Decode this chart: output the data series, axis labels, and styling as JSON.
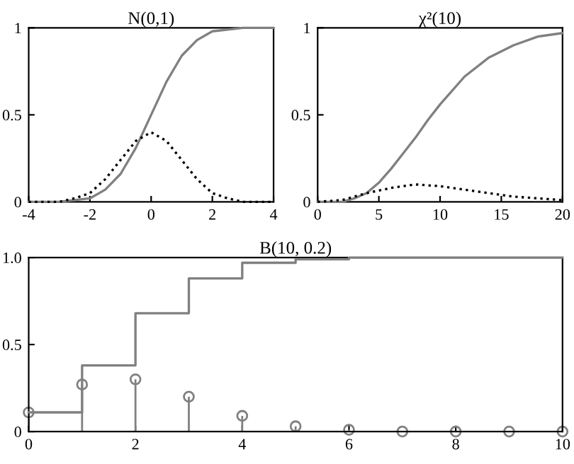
{
  "chart_data": [
    {
      "type": "line",
      "title": "N(0,1)",
      "xlim": [
        -4,
        4
      ],
      "xticks": [
        -4,
        -2,
        0,
        2,
        4
      ],
      "ylim": [
        0,
        1
      ],
      "yticks": [
        0,
        0.5,
        1
      ],
      "grid": false,
      "series": [
        {
          "color": "#808080",
          "line_style": "solid",
          "x": [
            -4,
            -3.5,
            -3,
            -2.5,
            -2,
            -1.5,
            -1,
            -0.5,
            0,
            0.5,
            1,
            1.5,
            2,
            2.5,
            3,
            3.5,
            4
          ],
          "values": [
            0,
            0,
            0,
            0.01,
            0.02,
            0.07,
            0.16,
            0.31,
            0.5,
            0.69,
            0.84,
            0.93,
            0.98,
            0.99,
            1,
            1,
            1
          ]
        },
        {
          "color": "#000000",
          "line_style": "dotted",
          "x": [
            -4,
            -3.5,
            -3,
            -2.5,
            -2,
            -1.5,
            -1,
            -0.5,
            0,
            0.5,
            1,
            1.5,
            2,
            2.5,
            3,
            3.5,
            4
          ],
          "values": [
            0,
            0,
            0,
            0.02,
            0.05,
            0.13,
            0.24,
            0.35,
            0.4,
            0.35,
            0.24,
            0.13,
            0.05,
            0.02,
            0,
            0,
            0
          ]
        }
      ]
    },
    {
      "type": "line",
      "title": "χ²(10)",
      "xlim": [
        0,
        20
      ],
      "xticks": [
        0,
        5,
        10,
        15,
        20
      ],
      "ylim": [
        0,
        1
      ],
      "yticks": [
        0,
        0.5,
        1
      ],
      "grid": false,
      "series": [
        {
          "color": "#808080",
          "line_style": "solid",
          "x": [
            0,
            1,
            2,
            3,
            4,
            5,
            6,
            7,
            8,
            9,
            10,
            12,
            14,
            16,
            18,
            20
          ],
          "values": [
            0,
            0,
            0,
            0.02,
            0.05,
            0.11,
            0.19,
            0.28,
            0.37,
            0.47,
            0.56,
            0.72,
            0.83,
            0.9,
            0.95,
            0.97
          ]
        },
        {
          "color": "#000000",
          "line_style": "dotted",
          "x": [
            0,
            2,
            4,
            6,
            8,
            10,
            12,
            14,
            16,
            18,
            20
          ],
          "values": [
            0,
            0.01,
            0.05,
            0.08,
            0.1,
            0.09,
            0.07,
            0.05,
            0.03,
            0.02,
            0.01
          ]
        }
      ]
    },
    {
      "type": "step",
      "title": "B(10, 0.2)",
      "xlim": [
        0,
        10
      ],
      "xticks": [
        0,
        2,
        4,
        6,
        8,
        10
      ],
      "ylim": [
        0,
        1
      ],
      "yticks": [
        0,
        0.5,
        {
          "value": 1,
          "label": "1.0"
        }
      ],
      "grid": false,
      "x": [
        0,
        1,
        2,
        3,
        4,
        5,
        6,
        7,
        8,
        9,
        10
      ],
      "series": [
        {
          "type": "step",
          "color": "#808080",
          "line_style": "solid",
          "values": [
            0.11,
            0.38,
            0.68,
            0.88,
            0.97,
            0.99,
            1,
            1,
            1,
            1,
            1
          ]
        },
        {
          "type": "lollipop",
          "color": "#808080",
          "marker": "circle",
          "values": [
            0.11,
            0.27,
            0.3,
            0.2,
            0.09,
            0.03,
            0.01,
            0,
            0,
            0,
            0
          ]
        }
      ]
    }
  ]
}
